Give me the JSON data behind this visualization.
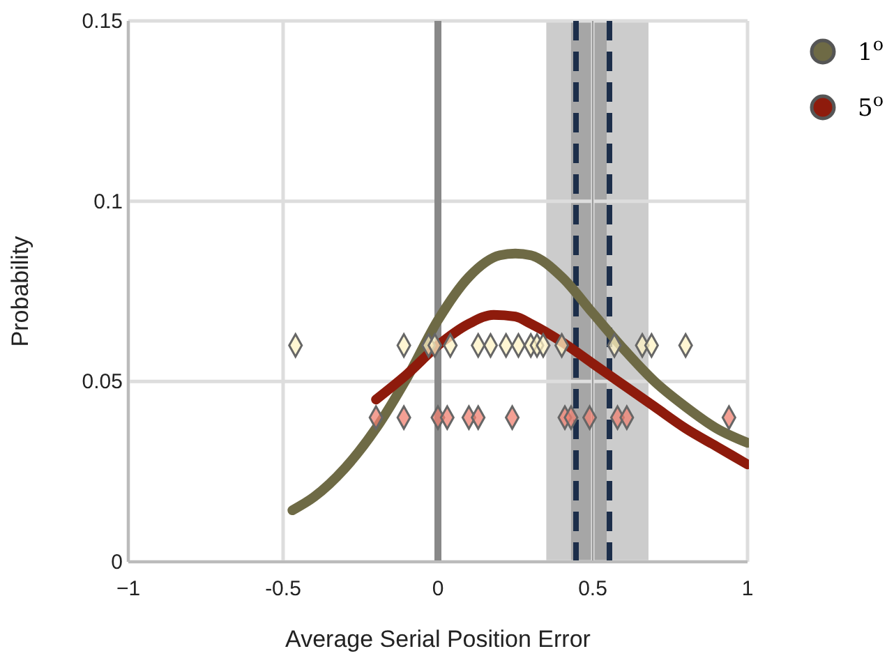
{
  "chart_data": {
    "type": "line",
    "xlabel": "Average Serial Position Error",
    "ylabel": "Probability",
    "xlim": [
      -1,
      1
    ],
    "xticks": [
      {
        "value": -1,
        "label": "−1"
      },
      -0.5,
      0,
      0.5,
      1
    ],
    "ylim": [
      0,
      0.15
    ],
    "yticks": [
      0,
      0.05,
      0.1,
      0.15
    ],
    "grid": true,
    "legend": "top right",
    "bands": [
      {
        "axis": "x",
        "from": 0.35,
        "to": 0.68,
        "color": "#cccccc"
      },
      {
        "axis": "x",
        "from": 0.43,
        "to": 0.545,
        "color": "#a6a6a6"
      }
    ],
    "ref_lines": [
      {
        "axis": "x",
        "value": 0,
        "color": "#888888",
        "line_style": "solid"
      },
      {
        "axis": "x",
        "value": 0.5,
        "color": "#999999",
        "line_style": "solid"
      },
      {
        "axis": "x",
        "value": 0.446,
        "color": "#1c2e4a",
        "line_style": "dashed"
      },
      {
        "axis": "x",
        "value": 0.554,
        "color": "#1c2e4a",
        "line_style": "dashed"
      }
    ],
    "series": [
      {
        "type": "line",
        "name": "1$^{o}$",
        "color": "#6e6a45",
        "marker": "none",
        "x": [
          -0.47,
          -0.4,
          -0.3,
          -0.2,
          -0.1,
          0,
          0.1,
          0.2,
          0.25,
          0.3,
          0.4,
          0.5,
          0.6,
          0.7,
          0.8,
          0.9,
          1.0
        ],
        "values": [
          0.0143,
          0.018,
          0.026,
          0.037,
          0.051,
          0.067,
          0.079,
          0.085,
          0.0855,
          0.085,
          0.079,
          0.069,
          0.059,
          0.05,
          0.043,
          0.037,
          0.033
        ]
      },
      {
        "type": "line",
        "name": "5$^{o}$",
        "color": "#8e1b0c",
        "marker": "none",
        "x": [
          -0.2,
          -0.1,
          0,
          0.1,
          0.18,
          0.25,
          0.3,
          0.4,
          0.5,
          0.6,
          0.7,
          0.8,
          0.9,
          1.0
        ],
        "values": [
          0.045,
          0.052,
          0.06,
          0.066,
          0.0685,
          0.068,
          0.066,
          0.061,
          0.055,
          0.049,
          0.043,
          0.037,
          0.032,
          0.027
        ]
      },
      {
        "type": "scatter",
        "color": "#fff3c4",
        "marker": "diamond",
        "x": [
          -0.46,
          -0.11,
          -0.03,
          -0.01,
          0.04,
          0.13,
          0.17,
          0.22,
          0.26,
          0.3,
          0.32,
          0.34,
          0.4,
          0.57,
          0.66,
          0.69,
          0.8
        ],
        "values": [
          0.06,
          0.06,
          0.06,
          0.06,
          0.06,
          0.06,
          0.06,
          0.06,
          0.06,
          0.06,
          0.06,
          0.06,
          0.06,
          0.06,
          0.06,
          0.06,
          0.06
        ]
      },
      {
        "type": "scatter",
        "color": "#f08070",
        "marker": "diamond",
        "x": [
          -0.2,
          -0.11,
          0,
          0.03,
          0.1,
          0.13,
          0.24,
          0.41,
          0.43,
          0.49,
          0.58,
          0.61,
          0.94
        ],
        "values": [
          0.04,
          0.04,
          0.04,
          0.04,
          0.04,
          0.04,
          0.04,
          0.04,
          0.04,
          0.04,
          0.04,
          0.04,
          0.04
        ]
      }
    ]
  }
}
